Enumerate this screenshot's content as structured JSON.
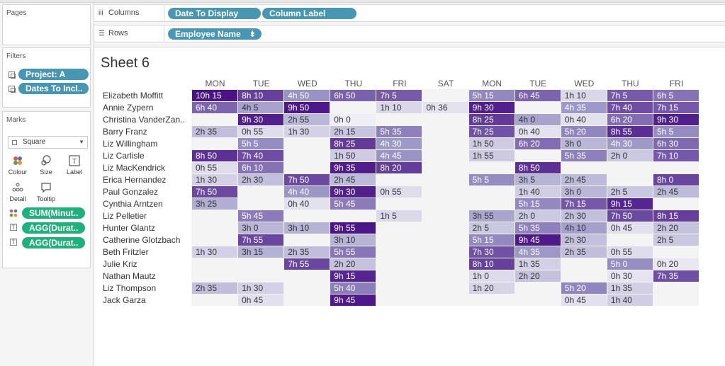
{
  "shelves": {
    "columns_label": "Columns",
    "rows_label": "Rows",
    "columns_pills": [
      "Date To Display",
      "Column Label"
    ],
    "rows_pills": [
      "Employee Name"
    ]
  },
  "panels": {
    "pages_title": "Pages",
    "filters_title": "Filters",
    "filters": [
      "Project: A",
      "Dates To Incl.."
    ],
    "marks_title": "Marks",
    "mark_type": "Square",
    "mark_buttons": [
      "Colour",
      "Size",
      "Label",
      "Detail",
      "Tooltip"
    ],
    "mark_fields": [
      "SUM(Minut..",
      "AGG(Durat..",
      "AGG(Durat.."
    ]
  },
  "sheet": {
    "title": "Sheet 6",
    "columns": [
      "MON",
      "TUE",
      "WED",
      "THU",
      "FRI",
      "SAT",
      "MON",
      "TUE",
      "WED",
      "THU",
      "FRI"
    ],
    "employees": [
      "Elizabeth Moffitt",
      "Annie Zypern",
      "Christina VanderZan..",
      "Barry Franz",
      "Liz Willingham",
      "Liz Carlisle",
      "Liz MacKendrick",
      "Erica Hernandez",
      "Paul Gonzalez",
      "Cynthia Arntzen",
      "Liz Pelletier",
      "Hunter Glantz",
      "Catherine Glotzbach",
      "Beth Fritzler",
      "Julie Kriz",
      "Nathan Mautz",
      "Liz Thompson",
      "Jack Garza"
    ],
    "cells": [
      [
        "10h 15",
        "8h 10",
        "4h 50",
        "6h 50",
        "7h 5",
        "",
        "5h 15",
        "6h 45",
        "1h 10",
        "7h 5",
        "6h 5"
      ],
      [
        "6h 40",
        "4h 5",
        "9h 50",
        "",
        "1h 10",
        "0h 36",
        "9h 30",
        "",
        "4h 35",
        "7h 40",
        "7h 15"
      ],
      [
        "",
        "9h 30",
        "2h 55",
        "0h 0",
        "",
        "",
        "8h 25",
        "4h 0",
        "0h 40",
        "6h 20",
        "9h 30"
      ],
      [
        "2h 35",
        "0h 55",
        "1h 30",
        "2h 15",
        "5h 35",
        "",
        "7h 25",
        "0h 40",
        "5h 20",
        "8h 55",
        "5h 5"
      ],
      [
        "",
        "5h 5",
        "",
        "8h 25",
        "4h 30",
        "",
        "1h 50",
        "6h 20",
        "3h 0",
        "4h 30",
        "6h 30"
      ],
      [
        "8h 50",
        "7h 40",
        "",
        "1h 50",
        "4h 45",
        "",
        "1h 55",
        "",
        "5h 35",
        "2h 0",
        "7h 10"
      ],
      [
        "0h 55",
        "6h 10",
        "",
        "9h 35",
        "8h 20",
        "",
        "",
        "8h 50",
        "",
        "",
        ""
      ],
      [
        "1h 30",
        "2h 30",
        "7h 50",
        "2h 45",
        "",
        "",
        "5h 5",
        "3h 5",
        "2h 45",
        "",
        "8h 0"
      ],
      [
        "7h 50",
        "",
        "4h 40",
        "9h 30",
        "0h 55",
        "",
        "",
        "1h 40",
        "3h 0",
        "2h 5",
        "2h 45"
      ],
      [
        "3h 25",
        "",
        "0h 40",
        "5h 45",
        "",
        "",
        "",
        "5h 15",
        "7h 15",
        "9h 15",
        ""
      ],
      [
        "",
        "5h 45",
        "",
        "",
        "1h 5",
        "",
        "3h 55",
        "2h 0",
        "2h 30",
        "7h 50",
        "8h 15"
      ],
      [
        "",
        "3h 0",
        "3h 10",
        "9h 55",
        "",
        "",
        "2h 5",
        "5h 35",
        "4h 10",
        "0h 45",
        "2h 20"
      ],
      [
        "",
        "7h 55",
        "",
        "3h 10",
        "",
        "",
        "5h 15",
        "9h 45",
        "2h 30",
        "",
        "2h 5"
      ],
      [
        "1h 30",
        "3h 15",
        "2h 35",
        "5h 55",
        "",
        "",
        "7h 30",
        "4h 35",
        "2h 35",
        "0h 55",
        ""
      ],
      [
        "",
        "",
        "7h 55",
        "2h 20",
        "",
        "",
        "8h 10",
        "1h 35",
        "",
        "5h 0",
        "0h 20"
      ],
      [
        "",
        "",
        "",
        "9h 15",
        "",
        "",
        "1h 0",
        "2h 20",
        "",
        "0h 30",
        "7h 35"
      ],
      [
        "2h 35",
        "1h 30",
        "",
        "5h 40",
        "",
        "",
        "1h 20",
        "",
        "5h 20",
        "1h 35",
        ""
      ],
      [
        "",
        "0h 45",
        "",
        "9h 45",
        "",
        "",
        "",
        "",
        "0h 45",
        "1h 40",
        ""
      ]
    ]
  },
  "colors": {
    "pill_teal": "#4996b2",
    "pill_green": "#1fb07b",
    "heat_low": "#efedf5",
    "heat_high": "#4a1486"
  }
}
